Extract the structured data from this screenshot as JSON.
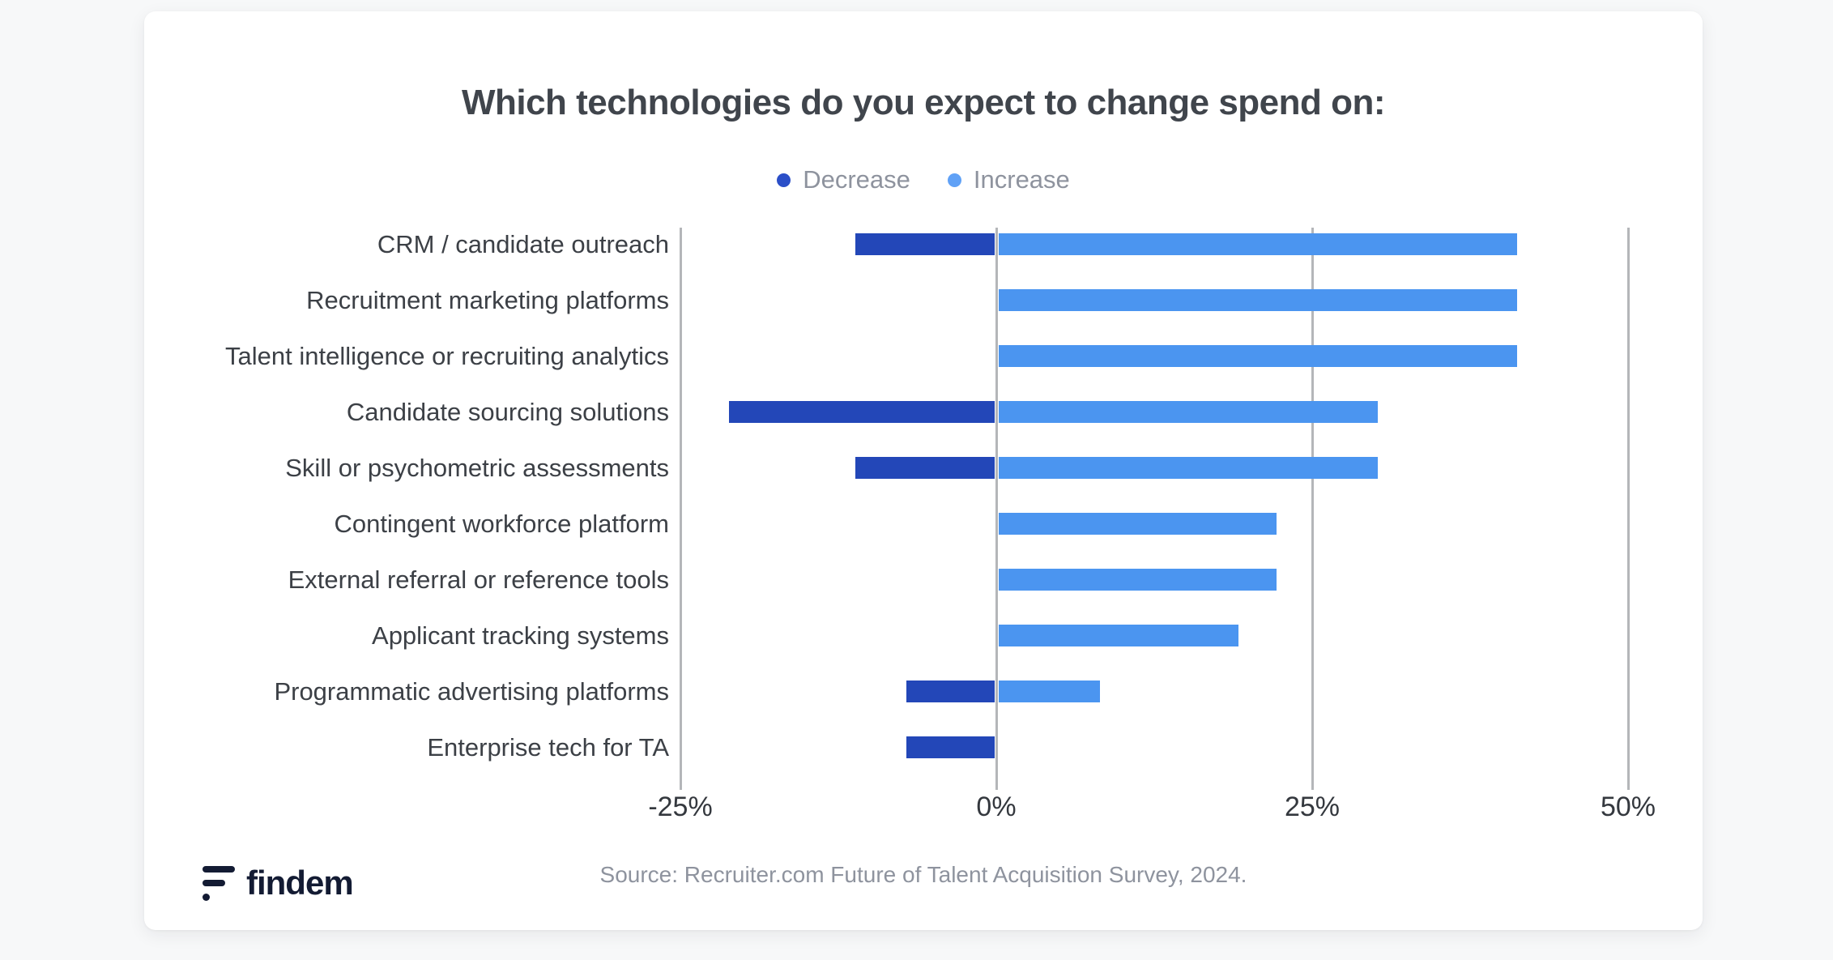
{
  "accent_colors": {
    "decrease": "#2347b8",
    "increase": "#4b95f0",
    "gridline": "#b4b6b9"
  },
  "legend": [
    {
      "label": "Decrease",
      "color": "#2b4fc8"
    },
    {
      "label": "Increase",
      "color": "#60a1f6"
    }
  ],
  "chart_data": {
    "type": "bar",
    "orientation": "horizontal",
    "title": "Which technologies do you expect to change spend on:",
    "categories": [
      "CRM / candidate outreach",
      "Recruitment marketing platforms",
      "Talent intelligence or recruiting analytics",
      "Candidate sourcing solutions",
      "Skill or psychometric assessments",
      "Contingent workforce platform",
      "External referral or reference tools",
      "Applicant tracking systems",
      "Programmatic advertising platforms",
      "Enterprise tech for TA"
    ],
    "series": [
      {
        "name": "Decrease",
        "color": "#2347b8",
        "values": [
          -11,
          0,
          0,
          -21,
          -11,
          0,
          0,
          0,
          -7,
          -7
        ]
      },
      {
        "name": "Increase",
        "color": "#4b95f0",
        "values": [
          41,
          41,
          41,
          30,
          30,
          22,
          22,
          19,
          8,
          0
        ]
      }
    ],
    "xlabel": "",
    "ylabel": "",
    "x_axis": {
      "range": [
        -25,
        50
      ],
      "ticks": [
        "-25%",
        "0%",
        "25%",
        "50%"
      ],
      "tick_values": [
        -25,
        0,
        25,
        50
      ]
    },
    "grid": "vertical-gridlines",
    "legend_position": "top"
  },
  "footer": {
    "source": "Source: Recruiter.com Future of Talent Acquisition Survey, 2024.",
    "logo_text": "findem"
  }
}
